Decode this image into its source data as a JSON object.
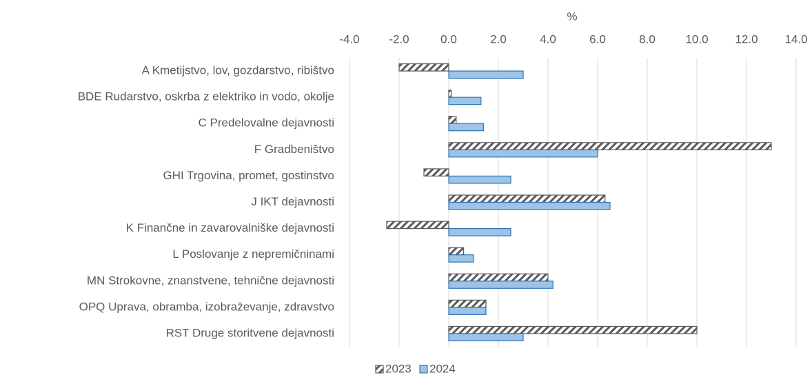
{
  "chart_data": {
    "type": "barh",
    "xlabel": "%",
    "categories": [
      "A Kmetijstvo, lov, gozdarstvo, ribištvo",
      "BDE Rudarstvo, oskrba z elektriko in vodo, okolje",
      "C Predelovalne dejavnosti",
      "F Gradbeništvo",
      "GHI Trgovina, promet, gostinstvo",
      "J IKT dejavnosti",
      "K Finančne in zavarovalniške dejavnosti",
      "L Poslovanje z nepremičninami",
      "MN Strokovne, znanstvene, tehnične dejavnosti",
      "OPQ Uprava, obramba, izobraževanje, zdravstvo",
      "RST Druge storitvene dejavnosti"
    ],
    "series": [
      {
        "name": "2023",
        "color": "#595959",
        "hatch": true,
        "values": [
          -2.0,
          0.1,
          0.3,
          13.0,
          -1.0,
          6.3,
          -2.5,
          0.6,
          4.0,
          1.5,
          10.0
        ]
      },
      {
        "name": "2024",
        "color": "#9dc3e6",
        "edgecolor": "#2e75b6",
        "values": [
          3.0,
          1.3,
          1.4,
          6.0,
          2.5,
          6.5,
          2.5,
          1.0,
          4.2,
          1.5,
          3.0
        ]
      }
    ],
    "xlim": [
      -4,
      14
    ],
    "xticks": [
      {
        "value": -4,
        "label": "-4.0"
      },
      {
        "value": -2,
        "label": "-2.0"
      },
      {
        "value": 0,
        "label": "0.0"
      },
      {
        "value": 2,
        "label": "2.0"
      },
      {
        "value": 4,
        "label": "4.0"
      },
      {
        "value": 6,
        "label": "6.0"
      },
      {
        "value": 8,
        "label": "8.0"
      },
      {
        "value": 10,
        "label": "10.0"
      },
      {
        "value": 12,
        "label": "12.0"
      },
      {
        "value": 14,
        "label": "14.0"
      }
    ],
    "grid": true,
    "legend": "bottom"
  }
}
